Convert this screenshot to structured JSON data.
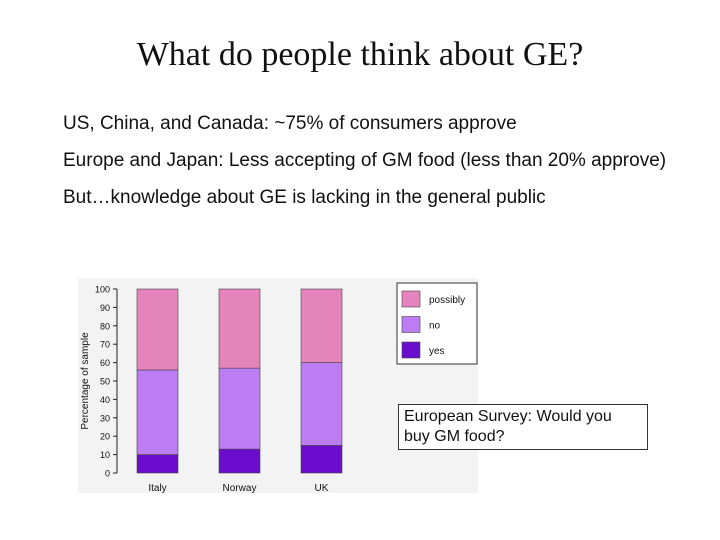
{
  "slide": {
    "title": "What do people think about GE?",
    "bullets": [
      "US, China, and Canada: ~75% of consumers approve",
      "Europe and Japan: Less accepting of GM food (less than 20% approve)",
      "But…knowledge about GE is lacking in the general public"
    ],
    "note": "European Survey: Would you buy GM food?"
  },
  "chart_data": {
    "type": "bar",
    "stacked": true,
    "categories": [
      "Italy",
      "Norway",
      "UK"
    ],
    "series": [
      {
        "name": "yes",
        "color": "#6a0dcc",
        "values": [
          10,
          13,
          15
        ]
      },
      {
        "name": "no",
        "color": "#bb7cf4",
        "values": [
          46,
          44,
          45
        ]
      },
      {
        "name": "possibly",
        "color": "#e583bd",
        "values": [
          44,
          43,
          40
        ]
      }
    ],
    "ylabel": "Percentage of sample",
    "ylim": [
      0,
      100
    ],
    "yticks": [
      0,
      10,
      20,
      30,
      40,
      50,
      60,
      70,
      80,
      90,
      100
    ],
    "legend": {
      "position": "top-right",
      "order": [
        "possibly",
        "no",
        "yes"
      ]
    },
    "grid": false
  }
}
